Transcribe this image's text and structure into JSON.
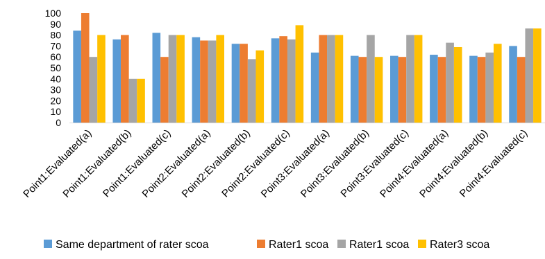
{
  "chart_data": {
    "type": "bar",
    "title": "",
    "xlabel": "",
    "ylabel": "",
    "ylim": [
      0,
      100
    ],
    "yticks": [
      0,
      10,
      20,
      30,
      40,
      50,
      60,
      70,
      80,
      90,
      100
    ],
    "grid": false,
    "legend_position": "bottom",
    "categories": [
      "Point1:Evaluated(a)",
      "Point1:Evaluated(b)",
      "Point1:Evaluated(c)",
      "Point2:Evaluated(a)",
      "Point2:Evaluated(b)",
      "Point2:Evaluated(c)",
      "Point3:Evaluated(a)",
      "Point3:Evaluated(b)",
      "Point3:Evaluated(c)",
      "Point4:Evaluated(a)",
      "Point4:Evaluated(b)",
      "Point4:Evaluated(c)"
    ],
    "series": [
      {
        "name": "Same department of rater scoa",
        "color": "#5B9BD5",
        "values": [
          84,
          76,
          82,
          78,
          72,
          77,
          64,
          61,
          61,
          62,
          61,
          70
        ]
      },
      {
        "name": "Rater1 scoa",
        "color": "#ED7D31",
        "values": [
          100,
          80,
          60,
          75,
          72,
          79,
          80,
          60,
          60,
          60,
          60,
          60
        ]
      },
      {
        "name": "Rater1 scoa",
        "color": "#A5A5A5",
        "values": [
          60,
          40,
          80,
          75,
          58,
          76,
          80,
          80,
          80,
          73,
          64,
          86
        ]
      },
      {
        "name": "Rater3 scoa",
        "color": "#FFC000",
        "values": [
          80,
          40,
          80,
          80,
          66,
          89,
          80,
          60,
          80,
          69,
          72,
          86
        ]
      }
    ]
  }
}
